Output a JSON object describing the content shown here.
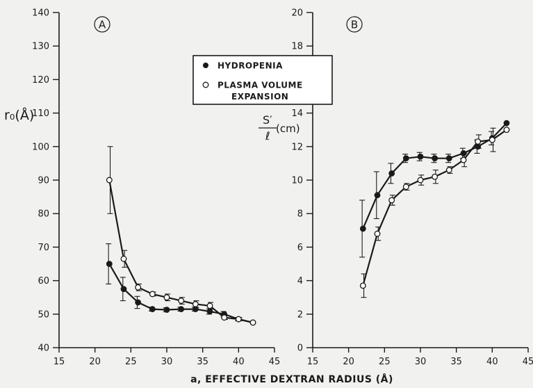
{
  "figure": {
    "xlabel_shared": "a, EFFECTIVE DEXTRAN RADIUS (Å)"
  },
  "colors": {
    "background": "#f1f1ef",
    "ink": "#1a1a1a",
    "open_marker_fill": "#ffffff"
  },
  "legend": {
    "placement": "top-center",
    "entries": [
      {
        "label_lines": [
          "HYDROPENIA"
        ],
        "marker": "filled-circle"
      },
      {
        "label_lines": [
          "PLASMA VOLUME",
          "EXPANSION"
        ],
        "marker": "open-circle"
      }
    ]
  },
  "chart_data": [
    {
      "type": "line",
      "panel": "A",
      "xlabel": "",
      "ylabel": "r₀(Å)",
      "xlim": [
        15,
        45
      ],
      "ylim": [
        40,
        140
      ],
      "xticks": [
        "15",
        "20",
        "25",
        "30",
        "35",
        "40",
        "45"
      ],
      "yticks": [
        "40",
        "50",
        "60",
        "70",
        "80",
        "90",
        "100",
        "110",
        "120",
        "130",
        "140"
      ],
      "grid": false,
      "series": [
        {
          "name": "HYDROPENIA",
          "marker": "filled",
          "points": [
            {
              "x": 22,
              "y": 65,
              "err": 6
            },
            {
              "x": 24,
              "y": 57.5,
              "err": 3.5
            },
            {
              "x": 26,
              "y": 53.5,
              "err": 1.8
            },
            {
              "x": 28,
              "y": 51.5,
              "err": 0.6
            },
            {
              "x": 30,
              "y": 51.3,
              "err": 0.6
            },
            {
              "x": 32,
              "y": 51.5,
              "err": 0.6
            },
            {
              "x": 34,
              "y": 51.5,
              "err": 0.6
            },
            {
              "x": 36,
              "y": 50.8,
              "err": 0.8
            },
            {
              "x": 38,
              "y": 50,
              "err": 0.8
            },
            {
              "x": 40,
              "y": 48.5,
              "err": 0.5
            },
            {
              "x": 42,
              "y": 47.5,
              "err": 0
            }
          ]
        },
        {
          "name": "PLASMA VOLUME EXPANSION",
          "marker": "open",
          "points": [
            {
              "x": 22,
              "y": 90,
              "err": 10
            },
            {
              "x": 24,
              "y": 66.5,
              "err": 2.5
            },
            {
              "x": 26,
              "y": 58,
              "err": 1
            },
            {
              "x": 28,
              "y": 56,
              "err": 0.6
            },
            {
              "x": 30,
              "y": 55,
              "err": 1
            },
            {
              "x": 32,
              "y": 54,
              "err": 1
            },
            {
              "x": 34,
              "y": 53,
              "err": 1
            },
            {
              "x": 36,
              "y": 52.5,
              "err": 1
            },
            {
              "x": 38,
              "y": 49,
              "err": 0.6
            },
            {
              "x": 40,
              "y": 48.5,
              "err": 0.5
            },
            {
              "x": 42,
              "y": 47.5,
              "err": 0
            }
          ]
        }
      ]
    },
    {
      "type": "line",
      "panel": "B",
      "xlabel": "",
      "ylabel": "S′/ℓ (cm)",
      "ylabel_parts": {
        "numerator": "S′",
        "denominator": "ℓ",
        "unit": "(cm)"
      },
      "xlim": [
        15,
        45
      ],
      "ylim": [
        0,
        20
      ],
      "xticks": [
        "15",
        "20",
        "25",
        "30",
        "35",
        "40",
        "45"
      ],
      "yticks": [
        "0",
        "2",
        "4",
        "6",
        "8",
        "10",
        "12",
        "14",
        "16",
        "18",
        "20"
      ],
      "grid": false,
      "series": [
        {
          "name": "HYDROPENIA",
          "marker": "filled",
          "points": [
            {
              "x": 22,
              "y": 7.1,
              "err": 1.7
            },
            {
              "x": 24,
              "y": 9.1,
              "err": 1.4
            },
            {
              "x": 26,
              "y": 10.4,
              "err": 0.6
            },
            {
              "x": 28,
              "y": 11.3,
              "err": 0.25
            },
            {
              "x": 30,
              "y": 11.4,
              "err": 0.25
            },
            {
              "x": 32,
              "y": 11.3,
              "err": 0.25
            },
            {
              "x": 34,
              "y": 11.3,
              "err": 0.25
            },
            {
              "x": 36,
              "y": 11.6,
              "err": 0.3
            },
            {
              "x": 38,
              "y": 12.0,
              "err": 0.4
            },
            {
              "x": 40,
              "y": 12.5,
              "err": 0.4
            },
            {
              "x": 42,
              "y": 13.4,
              "err": 0
            }
          ]
        },
        {
          "name": "PLASMA VOLUME EXPANSION",
          "marker": "open",
          "points": [
            {
              "x": 22,
              "y": 3.7,
              "err": 0.7
            },
            {
              "x": 24,
              "y": 6.8,
              "err": 0.4
            },
            {
              "x": 26,
              "y": 8.8,
              "err": 0.3
            },
            {
              "x": 28,
              "y": 9.6,
              "err": 0.2
            },
            {
              "x": 30,
              "y": 10.0,
              "err": 0.3
            },
            {
              "x": 32,
              "y": 10.2,
              "err": 0.4
            },
            {
              "x": 34,
              "y": 10.6,
              "err": 0.2
            },
            {
              "x": 36,
              "y": 11.2,
              "err": 0.4
            },
            {
              "x": 38,
              "y": 12.3,
              "err": 0.4
            },
            {
              "x": 40,
              "y": 12.4,
              "err": 0.7
            },
            {
              "x": 42,
              "y": 13.0,
              "err": 0
            }
          ]
        }
      ]
    }
  ]
}
